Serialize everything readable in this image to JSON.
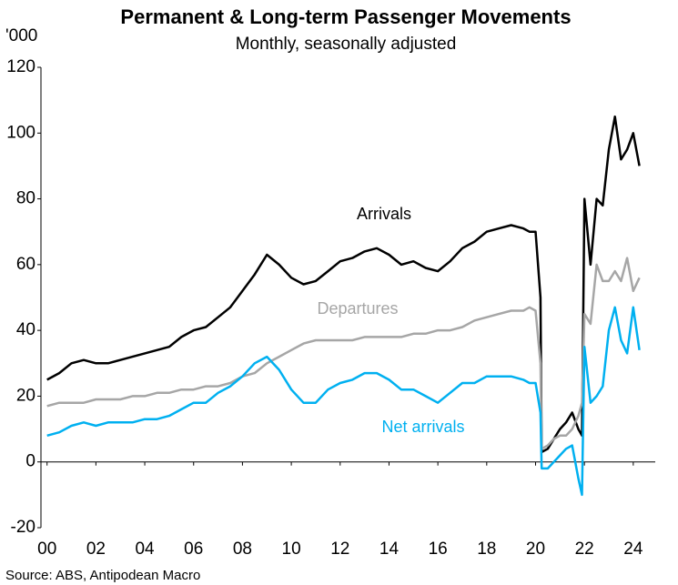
{
  "chart_data": {
    "type": "line",
    "title": "Permanent & Long-term Passenger Movements",
    "subtitle": "Monthly, seasonally adjusted",
    "y_unit_label": "'000",
    "source": "Source: ABS, Antipodean Macro",
    "x": [
      2000,
      2000.5,
      2001,
      2001.5,
      2002,
      2002.5,
      2003,
      2003.5,
      2004,
      2004.5,
      2005,
      2005.5,
      2006,
      2006.5,
      2007,
      2007.5,
      2008,
      2008.5,
      2009,
      2009.5,
      2010,
      2010.5,
      2011,
      2011.5,
      2012,
      2012.5,
      2013,
      2013.5,
      2014,
      2014.5,
      2015,
      2015.5,
      2016,
      2016.5,
      2017,
      2017.5,
      2018,
      2018.5,
      2019,
      2019.5,
      2019.75,
      2020,
      2020.2,
      2020.25,
      2020.5,
      2020.75,
      2021,
      2021.25,
      2021.5,
      2021.75,
      2021.9,
      2022,
      2022.25,
      2022.5,
      2022.75,
      2023,
      2023.25,
      2023.5,
      2023.75,
      2024,
      2024.25
    ],
    "series": [
      {
        "name": "Arrivals",
        "color": "#000000",
        "values": [
          25,
          27,
          30,
          31,
          30,
          30,
          31,
          32,
          33,
          34,
          35,
          38,
          40,
          41,
          44,
          47,
          52,
          57,
          63,
          60,
          56,
          54,
          55,
          58,
          61,
          62,
          64,
          65,
          63,
          60,
          61,
          59,
          58,
          61,
          65,
          67,
          70,
          71,
          72,
          71,
          70,
          70,
          50,
          3,
          4,
          7,
          10,
          12,
          15,
          10,
          8,
          80,
          60,
          80,
          78,
          95,
          105,
          92,
          95,
          100,
          90
        ]
      },
      {
        "name": "Departures",
        "color": "#a6a6a6",
        "values": [
          17,
          18,
          18,
          18,
          19,
          19,
          19,
          20,
          20,
          21,
          21,
          22,
          22,
          23,
          23,
          24,
          26,
          27,
          30,
          32,
          34,
          36,
          37,
          37,
          37,
          37,
          38,
          38,
          38,
          38,
          39,
          39,
          40,
          40,
          41,
          43,
          44,
          45,
          46,
          46,
          47,
          46,
          30,
          4,
          5,
          7,
          8,
          8,
          10,
          14,
          18,
          45,
          42,
          60,
          55,
          55,
          58,
          55,
          62,
          52,
          56
        ]
      },
      {
        "name": "Net arrivals",
        "color": "#00b0f0",
        "values": [
          8,
          9,
          11,
          12,
          11,
          12,
          12,
          12,
          13,
          13,
          14,
          16,
          18,
          18,
          21,
          23,
          26,
          30,
          32,
          28,
          22,
          18,
          18,
          22,
          24,
          25,
          27,
          27,
          25,
          22,
          22,
          20,
          18,
          21,
          24,
          24,
          26,
          26,
          26,
          25,
          24,
          24,
          15,
          -2,
          -2,
          0,
          2,
          4,
          5,
          -5,
          -10,
          35,
          18,
          20,
          23,
          40,
          47,
          37,
          33,
          47,
          34
        ]
      }
    ],
    "xlim": [
      1999.75,
      2024.9
    ],
    "xticks": [
      {
        "value": 2000,
        "label": "00"
      },
      {
        "value": 2002,
        "label": "02"
      },
      {
        "value": 2004,
        "label": "04"
      },
      {
        "value": 2006,
        "label": "06"
      },
      {
        "value": 2008,
        "label": "08"
      },
      {
        "value": 2010,
        "label": "10"
      },
      {
        "value": 2012,
        "label": "12"
      },
      {
        "value": 2014,
        "label": "14"
      },
      {
        "value": 2016,
        "label": "16"
      },
      {
        "value": 2018,
        "label": "18"
      },
      {
        "value": 2020,
        "label": "20"
      },
      {
        "value": 2022,
        "label": "22"
      },
      {
        "value": 2024,
        "label": "24"
      }
    ],
    "ylim": [
      -20,
      120
    ],
    "yticks": [
      -20,
      0,
      20,
      40,
      60,
      80,
      100,
      120
    ]
  }
}
